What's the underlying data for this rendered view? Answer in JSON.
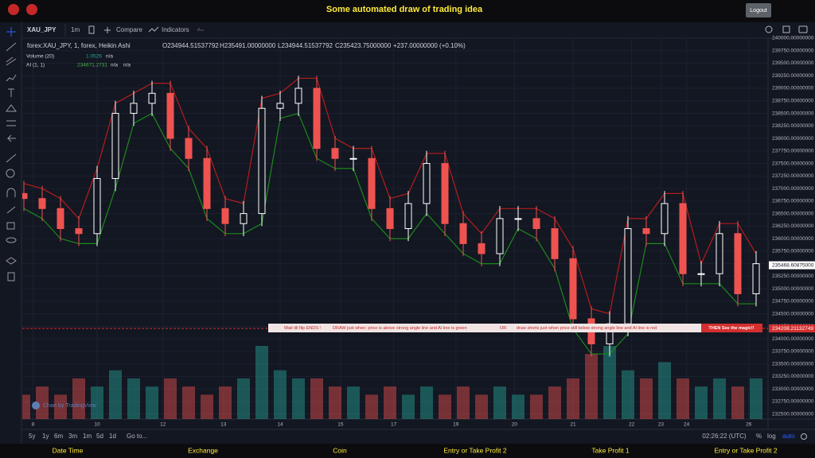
{
  "header": {
    "title": "Some automated draw of trading idea",
    "logout": "Logout"
  },
  "toolbar": {
    "symbol": "XAU_JPY",
    "interval": "1m",
    "compare": "Compare",
    "indicators": "Indicators"
  },
  "legend": {
    "symbol": "forex:XAU_JPY, 1, forex, Heikin Ashi",
    "open": "O234944.51537792",
    "high": "H235491.00000000",
    "low": "L234944.51537792",
    "close": "C235423.75000000",
    "change": "+237.00000000 (+0.10%)",
    "volume_name": "Volume (20)",
    "volume_value": "1.0526",
    "volume_na": "n/a",
    "ai_name": "AI (1, 1)",
    "ai_value": "234671.2731",
    "ai_na_1": "n/a",
    "ai_na_2": "n/a"
  },
  "annotation": {
    "parts": [
      "Wait till flip ENDS  !",
      "DRAW just when:  price is above strong angle line and AI line is green",
      "OR",
      "draw shorts just when price still below strong angle line and AI line is red"
    ],
    "highlight": "THEN See the magic!!"
  },
  "watermark": "Chart by TradingView",
  "range_buttons": [
    "5y",
    "1y",
    "6m",
    "3m",
    "1m",
    "5d",
    "1d",
    "Go to..."
  ],
  "clock": "02:26:22 (UTC)",
  "scale_buttons": [
    "%",
    "log",
    "auto"
  ],
  "footer_labels": [
    "Date Time",
    "Exchange",
    "Coin",
    "Entry or Take Profit 2",
    "Take Profit 1",
    "Entry or Take Profit 2"
  ],
  "chart_data": {
    "type": "candlestick",
    "up_color": "#ffffff",
    "down_color": "#ef5350",
    "volume_up_color": "#26a69a",
    "volume_down_color": "#ef5350",
    "open": [
      236900,
      236800,
      236600,
      236200,
      236100,
      237200,
      238500,
      238700,
      238900,
      238000,
      237600,
      236600,
      236300,
      236500,
      238600,
      238700,
      239000,
      237800,
      237600,
      237600,
      236600,
      236200,
      236700,
      237500,
      236300,
      235900,
      235700,
      236400,
      236400,
      236200,
      235600,
      234400,
      233900,
      234300,
      236200,
      236100,
      236700,
      235300,
      235300,
      236100,
      234900
    ],
    "high": [
      237150,
      237050,
      236850,
      236450,
      237450,
      238750,
      238950,
      239150,
      239150,
      238250,
      237850,
      236850,
      236750,
      238850,
      238950,
      239250,
      239250,
      238050,
      237850,
      237850,
      236850,
      236950,
      237750,
      237750,
      236550,
      236150,
      236650,
      236650,
      236650,
      236450,
      235850,
      234650,
      234550,
      236450,
      236450,
      236950,
      236950,
      235550,
      236350,
      236350,
      235750
    ],
    "low": [
      236550,
      236350,
      235950,
      235850,
      235850,
      236950,
      238250,
      238450,
      237750,
      237350,
      236350,
      236050,
      236050,
      236250,
      238350,
      238450,
      237550,
      237350,
      237350,
      236350,
      235950,
      235950,
      236450,
      236050,
      235650,
      235450,
      235450,
      236150,
      235950,
      235350,
      234150,
      233650,
      233650,
      234050,
      235850,
      235850,
      235050,
      235050,
      235050,
      234650,
      234650
    ],
    "close": [
      236800,
      236600,
      236200,
      236100,
      237200,
      238500,
      238700,
      238900,
      238000,
      237600,
      236600,
      236300,
      236500,
      238600,
      238700,
      239000,
      237800,
      237600,
      237600,
      236600,
      236200,
      236700,
      237500,
      236300,
      235900,
      235700,
      236400,
      236400,
      236200,
      235600,
      234400,
      233900,
      234300,
      236200,
      236100,
      236700,
      235300,
      235300,
      236100,
      234900,
      235500
    ],
    "volume": [
      3,
      4,
      3,
      5,
      4,
      6,
      5,
      4,
      5,
      4,
      3,
      4,
      5,
      9,
      6,
      5,
      5,
      4,
      4,
      3,
      4,
      3,
      4,
      3,
      4,
      3,
      4,
      3,
      3,
      4,
      5,
      8,
      9,
      6,
      5,
      7,
      5,
      4,
      5,
      4,
      5
    ],
    "lines": [
      {
        "color": "#b71c1c",
        "values": [
          237100,
          237000,
          236800,
          236400,
          237400,
          238700,
          238900,
          239100,
          239100,
          238200,
          237800,
          236800,
          236700,
          238800,
          238900,
          239200,
          239200,
          238000,
          237800,
          237800,
          236800,
          236900,
          237700,
          237700,
          236500,
          236100,
          236600,
          236600,
          236600,
          236400,
          235800,
          234600,
          234500,
          236400,
          236400,
          236900,
          236900,
          235500,
          236300,
          236300,
          235700
        ]
      },
      {
        "color": "#1b8a1b",
        "values": [
          236600,
          236400,
          236000,
          235900,
          235900,
          237000,
          238300,
          238500,
          237800,
          237400,
          236400,
          236100,
          236100,
          236300,
          238400,
          238500,
          237600,
          237400,
          237400,
          236400,
          236000,
          236000,
          236500,
          236100,
          235700,
          235500,
          235500,
          236200,
          236000,
          235400,
          234200,
          233700,
          233700,
          234100,
          235900,
          235900,
          235100,
          235100,
          235100,
          234700,
          234700
        ]
      }
    ],
    "ylim": [
      232400,
      240000
    ],
    "yticks": [
      {
        "value": 240000,
        "label": "240000.00000000"
      },
      {
        "value": 239750,
        "label": "239750.00000000"
      },
      {
        "value": 239500,
        "label": "239500.00000000"
      },
      {
        "value": 239250,
        "label": "239250.00000000"
      },
      {
        "value": 239000,
        "label": "239000.00000000"
      },
      {
        "value": 238750,
        "label": "238750.00000000"
      },
      {
        "value": 238500,
        "label": "238500.00000000"
      },
      {
        "value": 238250,
        "label": "238250.00000000"
      },
      {
        "value": 238000,
        "label": "238000.00000000"
      },
      {
        "value": 237750,
        "label": "237750.00000000"
      },
      {
        "value": 237500,
        "label": "237500.00000000"
      },
      {
        "value": 237250,
        "label": "237250.00000000"
      },
      {
        "value": 237000,
        "label": "237000.00000000"
      },
      {
        "value": 236750,
        "label": "236750.00000000"
      },
      {
        "value": 236500,
        "label": "236500.00000000"
      },
      {
        "value": 236250,
        "label": "236250.00000000"
      },
      {
        "value": 236000,
        "label": "236000.00000000"
      },
      {
        "value": 235750,
        "label": "235750.00000000"
      },
      {
        "value": 235500,
        "label": "235500.00000000"
      },
      {
        "value": 235250,
        "label": "235250.00000000"
      },
      {
        "value": 235000,
        "label": "235000.00000000"
      },
      {
        "value": 234750,
        "label": "234750.00000000"
      },
      {
        "value": 234500,
        "label": "234500.00000000"
      },
      {
        "value": 234250,
        "label": "234250.00000000"
      },
      {
        "value": 234000,
        "label": "234000.00000000"
      },
      {
        "value": 233750,
        "label": "233750.00000000"
      },
      {
        "value": 233500,
        "label": "233500.00000000"
      },
      {
        "value": 233250,
        "label": "233250.00000000"
      },
      {
        "value": 233000,
        "label": "233000.00000000"
      },
      {
        "value": 232750,
        "label": "232750.00000000"
      },
      {
        "value": 232500,
        "label": "232500.00000000"
      }
    ],
    "xticks": [
      {
        "value": 0.5,
        "label": "8"
      },
      {
        "value": 4,
        "label": "10"
      },
      {
        "value": 7.6,
        "label": "12"
      },
      {
        "value": 10.9,
        "label": "13"
      },
      {
        "value": 14,
        "label": "14"
      },
      {
        "value": 17.3,
        "label": "15"
      },
      {
        "value": 20.2,
        "label": "17"
      },
      {
        "value": 23.6,
        "label": "19"
      },
      {
        "value": 26.8,
        "label": "20"
      },
      {
        "value": 30,
        "label": "21"
      },
      {
        "value": 33.2,
        "label": "22"
      },
      {
        "value": 34.8,
        "label": "23"
      },
      {
        "value": 36.2,
        "label": "24"
      },
      {
        "value": 39.6,
        "label": "26"
      }
    ],
    "levels": [
      {
        "value": 234208.21132749,
        "label": "234208.21132749",
        "color": "#d32f2f"
      }
    ],
    "last_price": {
      "value": 235468.60875,
      "label": "235468.60875000"
    }
  }
}
